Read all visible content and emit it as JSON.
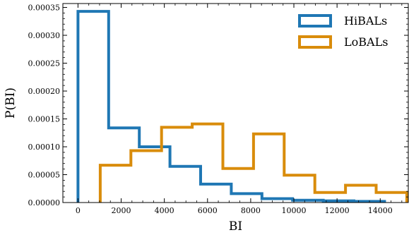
{
  "chart_data": {
    "type": "histogram",
    "xlabel": "BI",
    "ylabel": "P(BI)",
    "xlim": [
      -700,
      15300
    ],
    "ylim": [
      0,
      0.000357
    ],
    "xticks": [
      0,
      2000,
      4000,
      6000,
      8000,
      10000,
      12000,
      14000
    ],
    "xtick_labels": [
      "0",
      "2000",
      "4000",
      "6000",
      "8000",
      "10000",
      "12000",
      "14000"
    ],
    "yticks": [
      0,
      5e-05,
      0.0001,
      0.00015,
      0.0002,
      0.00025,
      0.0003,
      0.00035
    ],
    "ytick_labels": [
      "0.00000",
      "0.00005",
      "0.00010",
      "0.00015",
      "0.00020",
      "0.00025",
      "0.00030",
      "0.00035"
    ],
    "legend_position": "top-right",
    "grid": false,
    "series": [
      {
        "name": "HiBALs",
        "color": "#1f77b4",
        "bin_edges": [
          0,
          1420,
          2840,
          4260,
          5680,
          7100,
          8520,
          9940,
          11360,
          12780,
          14200
        ],
        "values": [
          0.000343,
          0.000134,
          0.0001,
          6.5e-05,
          3.3e-05,
          1.6e-05,
          7e-06,
          4e-06,
          3e-06,
          2e-06
        ]
      },
      {
        "name": "LoBALs",
        "color": "#d98c0b",
        "bin_edges": [
          1030,
          2450,
          3870,
          5290,
          6710,
          8130,
          9550,
          10970,
          12390,
          13810,
          15230
        ],
        "values": [
          6.7e-05,
          9.3e-05,
          0.000135,
          0.000141,
          6.1e-05,
          0.000123,
          4.9e-05,
          1.8e-05,
          3.1e-05,
          1.8e-05
        ]
      }
    ]
  }
}
